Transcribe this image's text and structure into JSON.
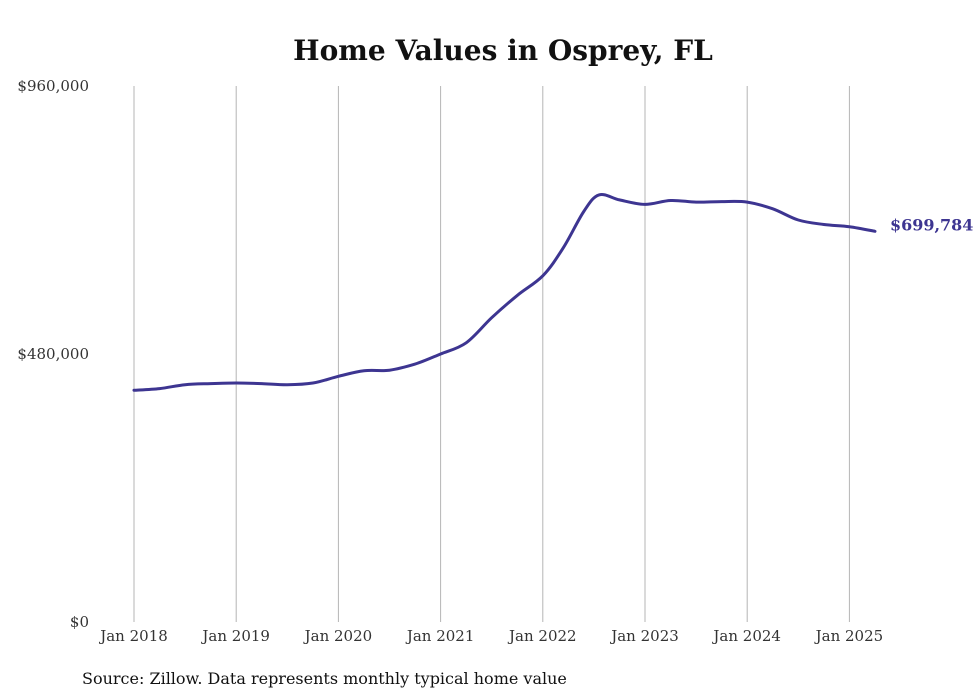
{
  "chart_data": {
    "type": "line",
    "title": "Home Values in Osprey, FL",
    "xlabel": "",
    "ylabel": "",
    "ylim": [
      0,
      960000
    ],
    "yticks": [
      0,
      480000,
      960000
    ],
    "ytick_labels": [
      "$0",
      "$480,000",
      "$960,000"
    ],
    "xticks": [
      2018,
      2019,
      2020,
      2021,
      2022,
      2023,
      2024,
      2025
    ],
    "xtick_labels": [
      "Jan 2018",
      "Jan 2019",
      "Jan 2020",
      "Jan 2021",
      "Jan 2022",
      "Jan 2023",
      "Jan 2024",
      "Jan 2025"
    ],
    "grid": "vertical",
    "line_color": "#3d3591",
    "end_label": "$699,784",
    "series": [
      {
        "points": [
          [
            2018.0,
            415000
          ],
          [
            2018.25,
            418000
          ],
          [
            2018.5,
            425000
          ],
          [
            2018.75,
            427000
          ],
          [
            2019.0,
            428000
          ],
          [
            2019.25,
            427000
          ],
          [
            2019.5,
            425000
          ],
          [
            2019.75,
            428000
          ],
          [
            2020.0,
            440000
          ],
          [
            2020.25,
            450000
          ],
          [
            2020.5,
            451000
          ],
          [
            2020.75,
            462000
          ],
          [
            2021.0,
            480000
          ],
          [
            2021.25,
            500000
          ],
          [
            2021.5,
            545000
          ],
          [
            2021.75,
            585000
          ],
          [
            2022.0,
            620000
          ],
          [
            2022.2,
            670000
          ],
          [
            2022.4,
            735000
          ],
          [
            2022.55,
            765000
          ],
          [
            2022.75,
            756000
          ],
          [
            2023.0,
            748000
          ],
          [
            2023.25,
            755000
          ],
          [
            2023.5,
            752000
          ],
          [
            2023.75,
            753000
          ],
          [
            2024.0,
            752000
          ],
          [
            2024.25,
            740000
          ],
          [
            2024.5,
            720000
          ],
          [
            2024.75,
            712000
          ],
          [
            2025.0,
            708000
          ],
          [
            2025.25,
            699784
          ]
        ]
      }
    ]
  },
  "source": "Source: Zillow. Data represents monthly typical home value"
}
